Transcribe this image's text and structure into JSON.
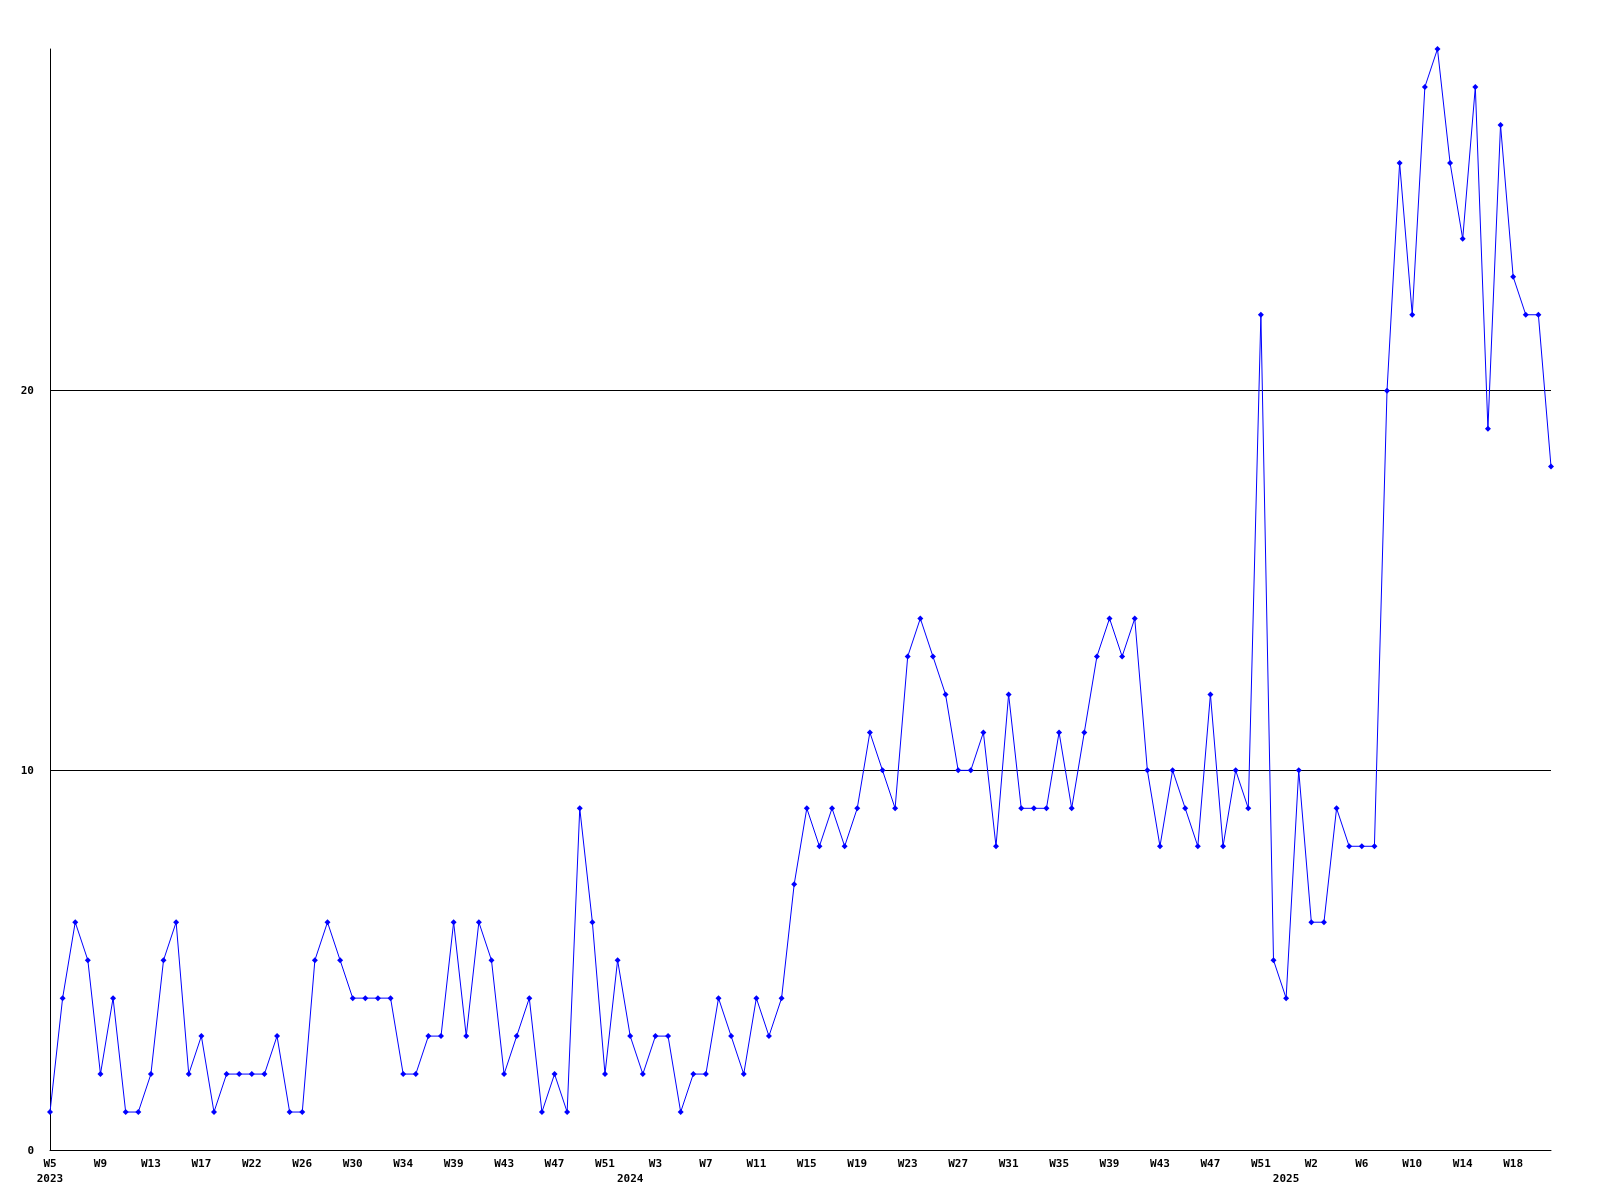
{
  "chart_data": {
    "type": "line",
    "categories": [
      "W5\n2023",
      null,
      null,
      null,
      "W9",
      null,
      null,
      null,
      "W13",
      null,
      null,
      null,
      "W17",
      null,
      null,
      null,
      "W22",
      null,
      null,
      null,
      "W26",
      null,
      null,
      null,
      "W30",
      null,
      null,
      null,
      "W34",
      null,
      null,
      null,
      "W39",
      null,
      null,
      null,
      "W43",
      null,
      null,
      null,
      "W47",
      null,
      null,
      null,
      "W51",
      null,
      "\n2024",
      null,
      "W3",
      null,
      null,
      null,
      "W7",
      null,
      null,
      null,
      "W11",
      null,
      null,
      null,
      "W15",
      null,
      null,
      null,
      "W19",
      null,
      null,
      null,
      "W23",
      null,
      null,
      null,
      "W27",
      null,
      null,
      null,
      "W31",
      null,
      null,
      null,
      "W35",
      null,
      null,
      null,
      "W39",
      null,
      null,
      null,
      "W43",
      null,
      null,
      null,
      "W47",
      null,
      null,
      null,
      "W51",
      null,
      "\n2025",
      null,
      "W2",
      null,
      null,
      null,
      "W6",
      null,
      null,
      null,
      "W10",
      null,
      null,
      null,
      "W14",
      null,
      null,
      null,
      "W18",
      null,
      null,
      null
    ],
    "series": [
      {
        "color": "#0000ff",
        "values": [
          1,
          4,
          6,
          5,
          2,
          4,
          1,
          1,
          2,
          5,
          6,
          2,
          3,
          1,
          2,
          2,
          2,
          2,
          3,
          1,
          1,
          5,
          6,
          5,
          4,
          4,
          4,
          4,
          2,
          2,
          3,
          3,
          6,
          3,
          6,
          5,
          2,
          3,
          4,
          1,
          2,
          1,
          9,
          6,
          2,
          5,
          3,
          2,
          3,
          3,
          1,
          2,
          2,
          4,
          3,
          2,
          4,
          3,
          4,
          7,
          9,
          8,
          9,
          8,
          9,
          11,
          10,
          9,
          13,
          14,
          13,
          12,
          10,
          10,
          11,
          8,
          12,
          9,
          9,
          9,
          11,
          9,
          11,
          13,
          14,
          13,
          14,
          10,
          8,
          10,
          9,
          8,
          12,
          8,
          10,
          9,
          22,
          5,
          4,
          10,
          6,
          6,
          9,
          8,
          8,
          8,
          20,
          26,
          22,
          28,
          29,
          26,
          24,
          28,
          19,
          27,
          23,
          22,
          22,
          18
        ]
      }
    ],
    "ylim": [
      0,
      29
    ],
    "yticks": [
      0,
      10,
      20
    ],
    "grid": "y",
    "marker": "diamond",
    "line_style": "solid"
  }
}
